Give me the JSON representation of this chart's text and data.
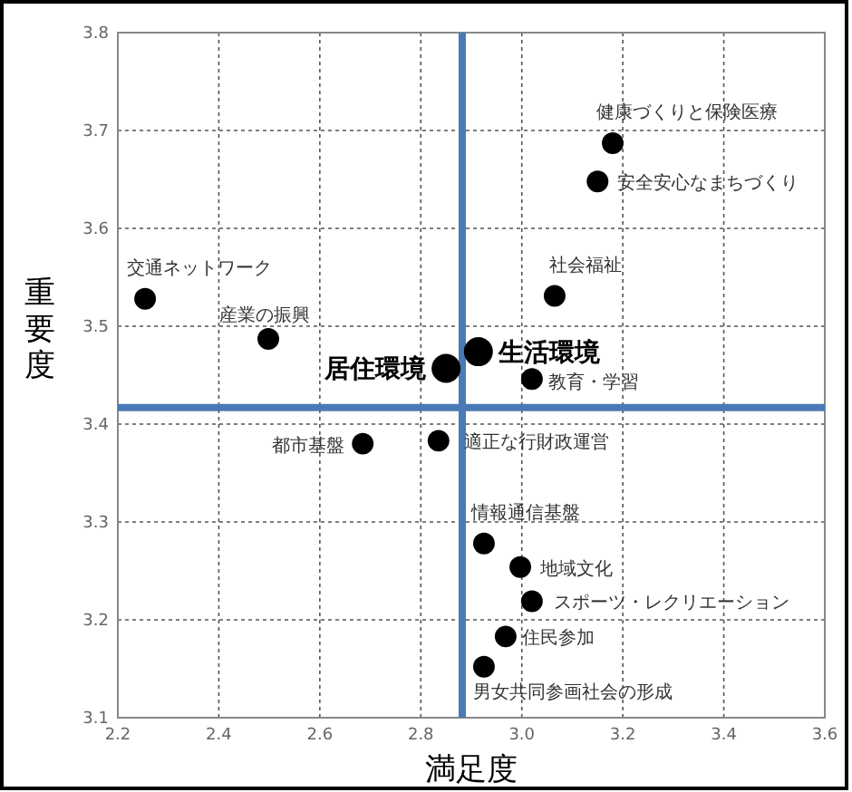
{
  "chart_data": {
    "type": "bubble",
    "xlabel": "満足度",
    "ylabel": "重要度",
    "x": [
      3.18,
      3.15,
      3.065,
      2.254,
      2.498,
      2.914,
      2.85,
      3.02,
      2.685,
      2.835,
      2.925,
      2.997,
      3.02,
      2.968,
      2.925
    ],
    "values": [
      3.687,
      3.648,
      3.531,
      3.528,
      3.487,
      3.474,
      3.457,
      3.446,
      3.38,
      3.383,
      3.278,
      3.254,
      3.219,
      3.183,
      3.152
    ],
    "sizes": [
      0.56,
      0.56,
      0.56,
      0.56,
      0.56,
      1,
      1,
      0.56,
      0.56,
      0.56,
      0.56,
      0.56,
      0.56,
      0.56,
      0.56
    ],
    "color": "#000000",
    "annotations": [
      {
        "text": "健康づくりと保険医療",
        "x": 3.18,
        "y": 3.687
      },
      {
        "text": "安全安心なまちづくり",
        "x": 3.15,
        "y": 3.648
      },
      {
        "text": "社会福祉",
        "x": 3.065,
        "y": 3.531
      },
      {
        "text": "交通ネットワーク",
        "x": 2.254,
        "y": 3.528
      },
      {
        "text": "産業の振興",
        "x": 2.498,
        "y": 3.487
      },
      {
        "text": "生活環境",
        "x": 2.914,
        "y": 3.474
      },
      {
        "text": "居住環境",
        "x": 2.85,
        "y": 3.457
      },
      {
        "text": "教育・学習",
        "x": 3.02,
        "y": 3.446
      },
      {
        "text": "都市基盤",
        "x": 2.685,
        "y": 3.38
      },
      {
        "text": "適正な行財政運営",
        "x": 2.835,
        "y": 3.383
      },
      {
        "text": "情報通信基盤",
        "x": 2.925,
        "y": 3.278
      },
      {
        "text": "地域文化",
        "x": 2.997,
        "y": 3.254
      },
      {
        "text": "スポーツ・レクリエーション",
        "x": 3.02,
        "y": 3.219
      },
      {
        "text": "住民参加",
        "x": 2.968,
        "y": 3.183
      },
      {
        "text": "男女共同参画社会の形成",
        "x": 2.925,
        "y": 3.152
      }
    ],
    "xlim": [
      2.2,
      3.6
    ],
    "ylim": [
      3.1,
      3.8
    ],
    "xticks": [
      2.2,
      2.4,
      2.6,
      2.8,
      {
        "value": 3,
        "label": "3.0"
      },
      3.2,
      3.4,
      3.6
    ],
    "yticks": [
      3.1,
      3.2,
      3.3,
      3.4,
      3.5,
      3.6,
      3.7,
      3.8
    ],
    "ref_lines": [
      {
        "axis": "x",
        "value": 2.882,
        "color": "#4a7ab5"
      },
      {
        "axis": "y",
        "value": 3.417,
        "color": "#4a7ab5"
      }
    ],
    "grid": true
  }
}
